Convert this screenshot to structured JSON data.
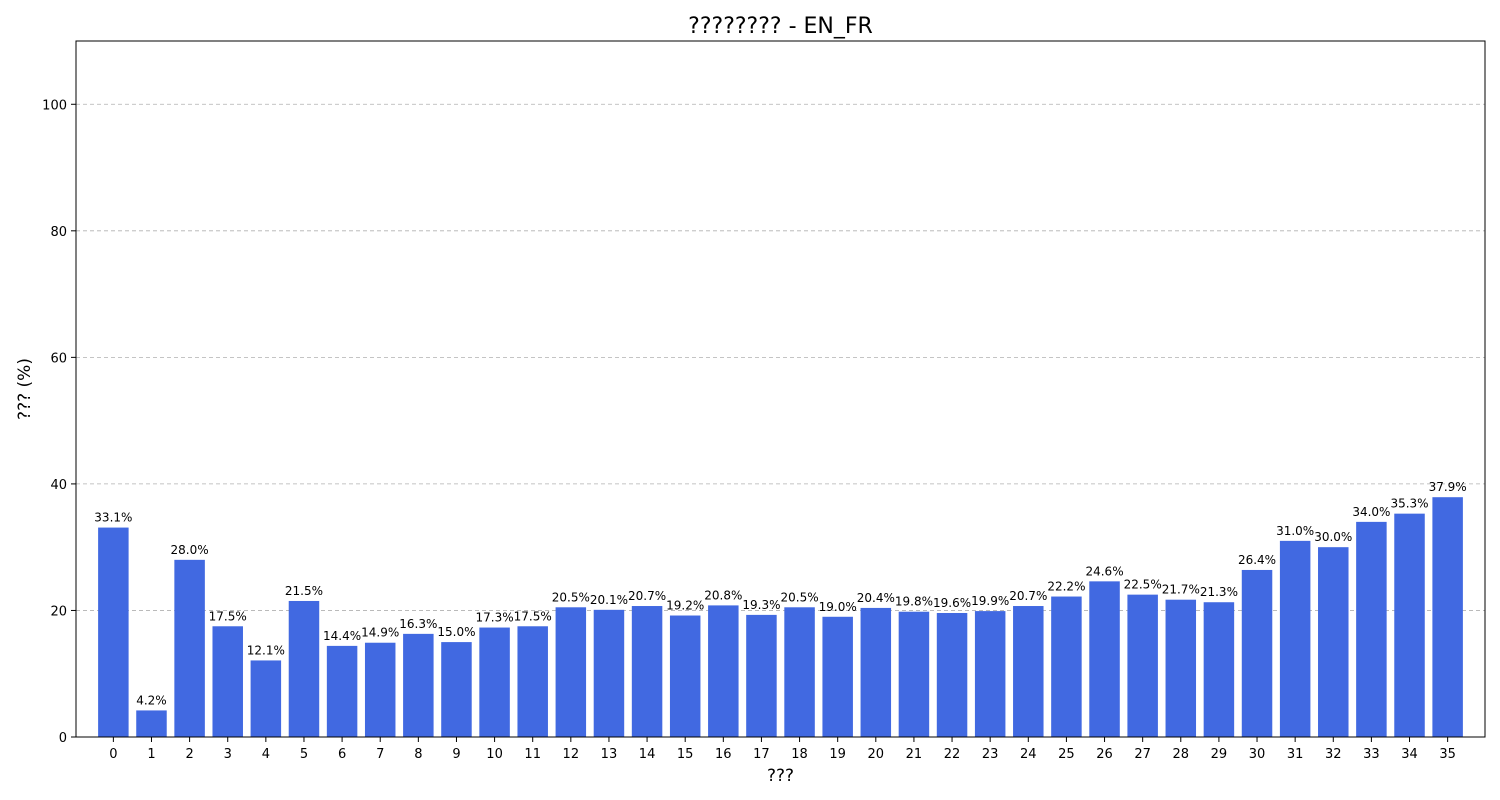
{
  "chart_data": {
    "type": "bar",
    "title": "???????? - EN_FR",
    "xlabel": "???",
    "ylabel": "??? (%)",
    "categories": [
      "0",
      "1",
      "2",
      "3",
      "4",
      "5",
      "6",
      "7",
      "8",
      "9",
      "10",
      "11",
      "12",
      "13",
      "14",
      "15",
      "16",
      "17",
      "18",
      "19",
      "20",
      "21",
      "22",
      "23",
      "24",
      "25",
      "26",
      "27",
      "28",
      "29",
      "30",
      "31",
      "32",
      "33",
      "34",
      "35"
    ],
    "values": [
      33.1,
      4.2,
      28.0,
      17.5,
      12.1,
      21.5,
      14.4,
      14.9,
      16.3,
      15.0,
      17.3,
      17.5,
      20.5,
      20.1,
      20.7,
      19.2,
      20.8,
      19.3,
      20.5,
      19.0,
      20.4,
      19.8,
      19.6,
      19.9,
      20.7,
      22.2,
      24.6,
      22.5,
      21.7,
      21.3,
      26.4,
      31.0,
      30.0,
      34.0,
      35.3,
      37.9
    ],
    "data_labels": [
      "33.1%",
      "4.2%",
      "28.0%",
      "17.5%",
      "12.1%",
      "21.5%",
      "14.4%",
      "14.9%",
      "16.3%",
      "15.0%",
      "17.3%",
      "17.5%",
      "20.5%",
      "20.1%",
      "20.7%",
      "19.2%",
      "20.8%",
      "19.3%",
      "20.5%",
      "19.0%",
      "20.4%",
      "19.8%",
      "19.6%",
      "19.9%",
      "20.7%",
      "22.2%",
      "24.6%",
      "22.5%",
      "21.7%",
      "21.3%",
      "26.4%",
      "31.0%",
      "30.0%",
      "34.0%",
      "35.3%",
      "37.9%"
    ],
    "ylim": [
      0,
      110
    ],
    "yticks": [
      0,
      20,
      40,
      60,
      80,
      100
    ],
    "grid": "y-dashed",
    "bar_color": "#4169E1"
  }
}
